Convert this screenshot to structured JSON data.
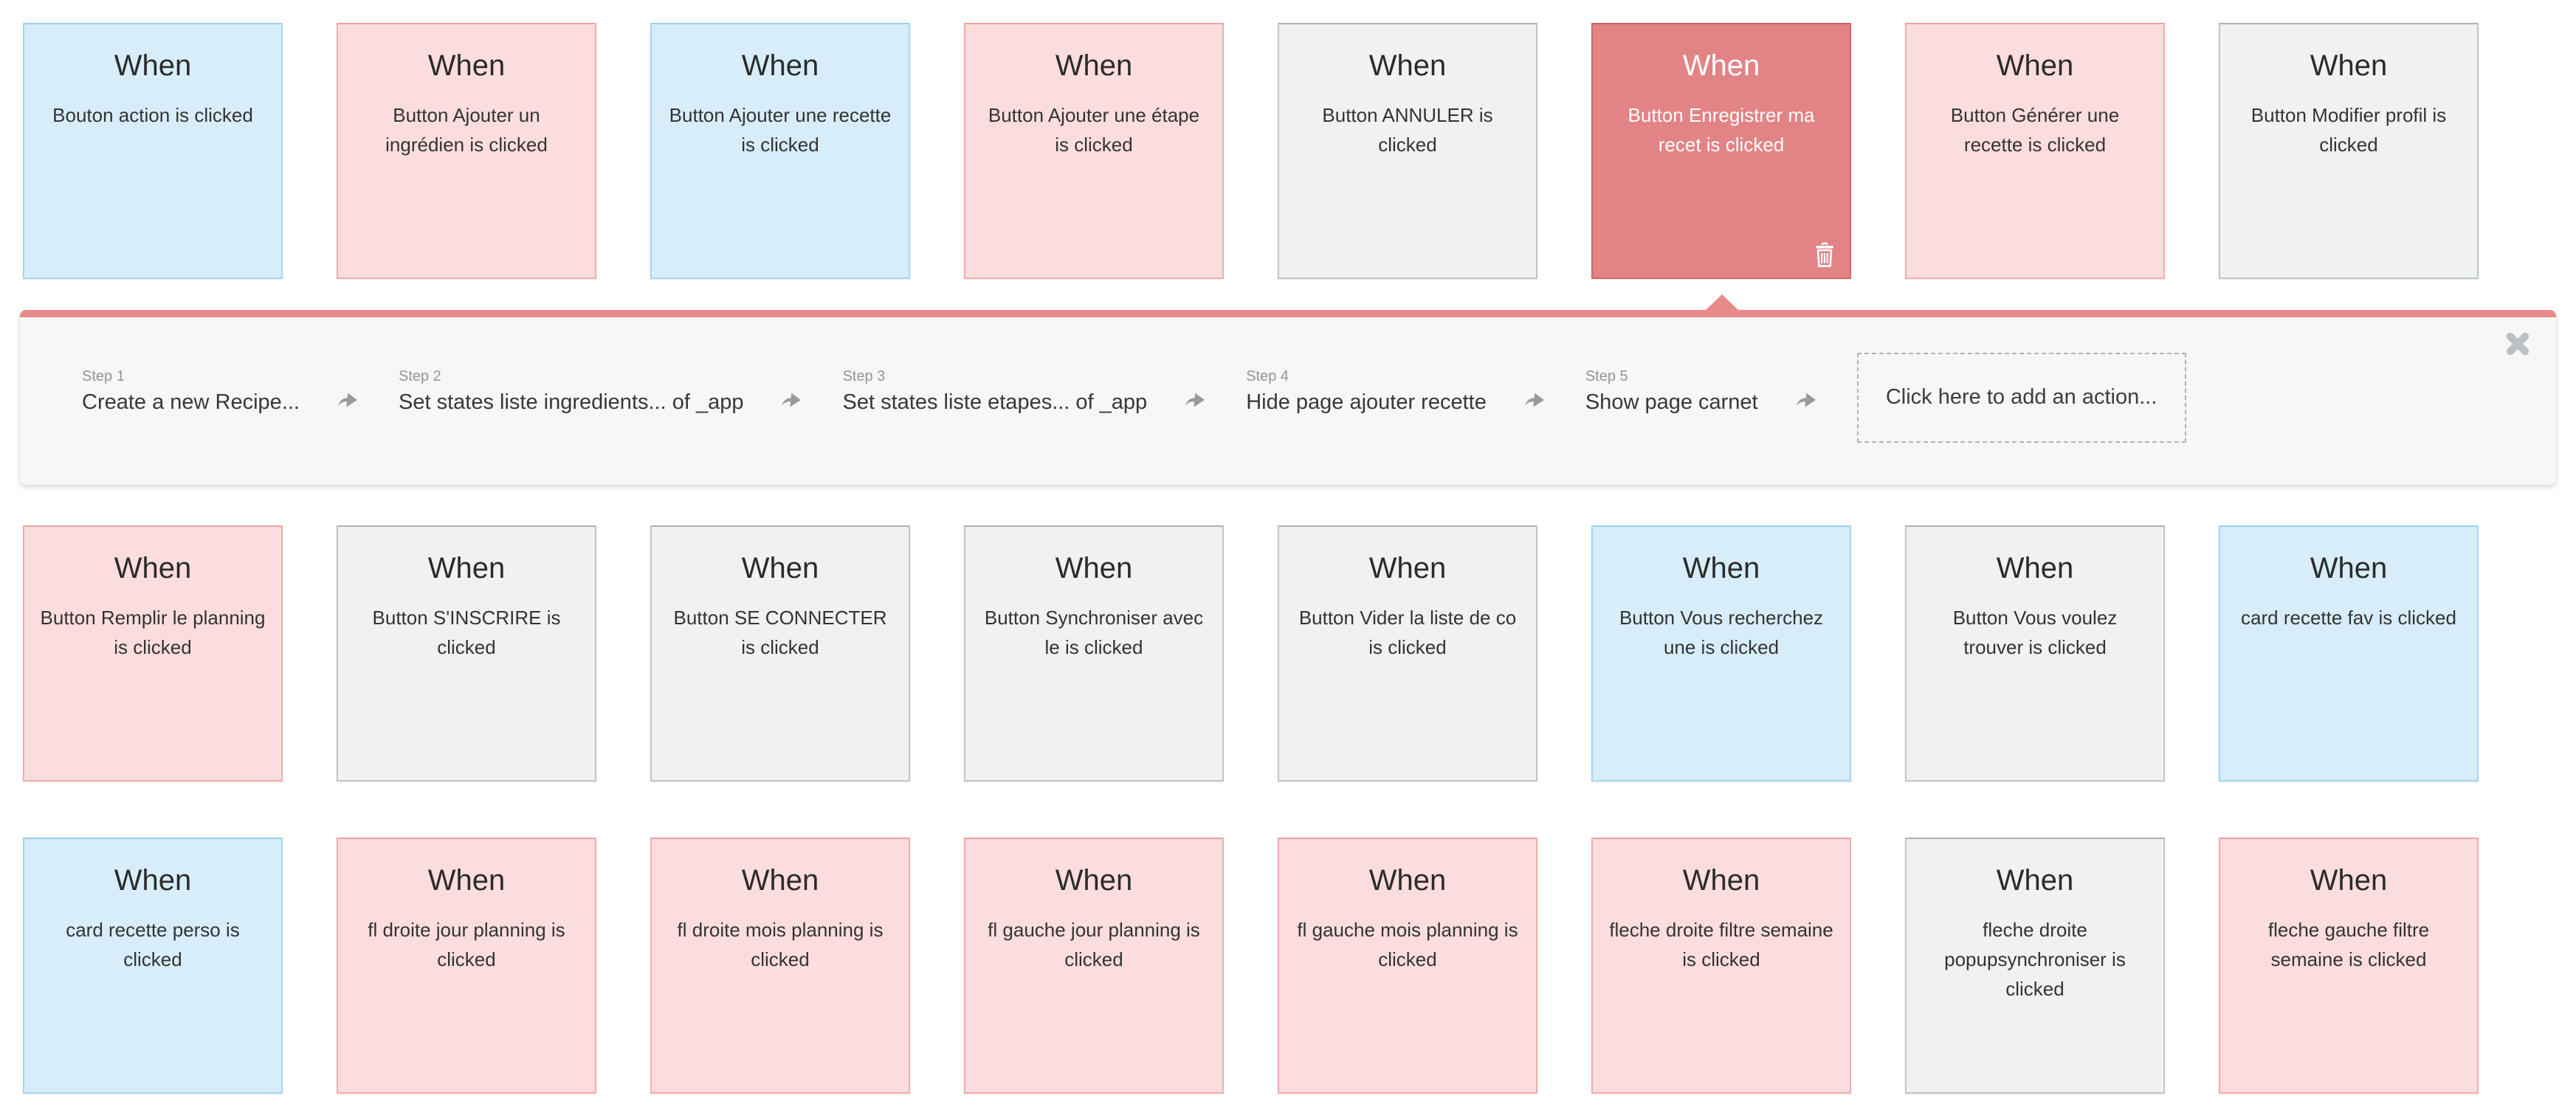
{
  "card_title": "When",
  "rows": [
    [
      {
        "title": "When",
        "text": "Bouton action is clicked",
        "color": "blue"
      },
      {
        "title": "When",
        "text": "Button Ajouter un ingrédien is clicked",
        "color": "pink"
      },
      {
        "title": "When",
        "text": "Button Ajouter une recette is clicked",
        "color": "blue"
      },
      {
        "title": "When",
        "text": "Button Ajouter une étape is clicked",
        "color": "pink"
      },
      {
        "title": "When",
        "text": "Button ANNULER is clicked",
        "color": "gray"
      },
      {
        "title": "When",
        "text": "Button Enregistrer ma recet is clicked",
        "color": "selected",
        "selected": true
      },
      {
        "title": "When",
        "text": "Button Générer une recette is clicked",
        "color": "pink"
      },
      {
        "title": "When",
        "text": "Button Modifier profil is clicked",
        "color": "gray"
      }
    ],
    [
      {
        "title": "When",
        "text": "Button Remplir le planning is clicked",
        "color": "pink"
      },
      {
        "title": "When",
        "text": "Button S'INSCRIRE is clicked",
        "color": "gray"
      },
      {
        "title": "When",
        "text": "Button SE CONNECTER is clicked",
        "color": "gray"
      },
      {
        "title": "When",
        "text": "Button Synchroniser avec le is clicked",
        "color": "gray"
      },
      {
        "title": "When",
        "text": "Button Vider la liste de co is clicked",
        "color": "gray"
      },
      {
        "title": "When",
        "text": "Button Vous recherchez une is clicked",
        "color": "blue"
      },
      {
        "title": "When",
        "text": "Button Vous voulez trouver is clicked",
        "color": "gray"
      },
      {
        "title": "When",
        "text": "card recette fav is clicked",
        "color": "blue"
      }
    ],
    [
      {
        "title": "When",
        "text": "card recette perso is clicked",
        "color": "blue"
      },
      {
        "title": "When",
        "text": "fl droite jour planning is clicked",
        "color": "pink"
      },
      {
        "title": "When",
        "text": "fl droite mois planning is clicked",
        "color": "pink"
      },
      {
        "title": "When",
        "text": "fl gauche jour planning is clicked",
        "color": "pink"
      },
      {
        "title": "When",
        "text": "fl gauche mois planning is clicked",
        "color": "pink"
      },
      {
        "title": "When",
        "text": "fleche droite filtre semaine is clicked",
        "color": "pink"
      },
      {
        "title": "When",
        "text": "fleche droite popupsynchroniser is clicked",
        "color": "gray"
      },
      {
        "title": "When",
        "text": "fleche gauche filtre semaine is clicked",
        "color": "pink"
      }
    ]
  ],
  "panel": {
    "selected_card_text": "Button Enregistrer ma recet is clicked",
    "steps": [
      {
        "label": "Step 1",
        "action": "Create a new Recipe..."
      },
      {
        "label": "Step 2",
        "action": "Set states liste ingredients... of _app"
      },
      {
        "label": "Step 3",
        "action": "Set states liste etapes... of _app"
      },
      {
        "label": "Step 4",
        "action": "Hide page ajouter recette"
      },
      {
        "label": "Step 5",
        "action": "Show page carnet"
      }
    ],
    "add_action_label": "Click here to add an action..."
  },
  "colors": {
    "card_blue_bg": "#d7edfa",
    "card_blue_border": "#a6d6f2",
    "card_pink_bg": "#fcdddd",
    "card_pink_border": "#f2adad",
    "card_gray_bg": "#f0f2f2",
    "card_gray_border": "#bfc7c9",
    "card_selected_bg": "#e28385",
    "card_selected_border": "#d4696b",
    "panel_bar": "#e8898b",
    "panel_bg": "#f7f7f7",
    "step_label": "#949494",
    "step_action": "#383838",
    "arrow": "#9a9a9a",
    "close_icon": "#b9c1c7"
  }
}
